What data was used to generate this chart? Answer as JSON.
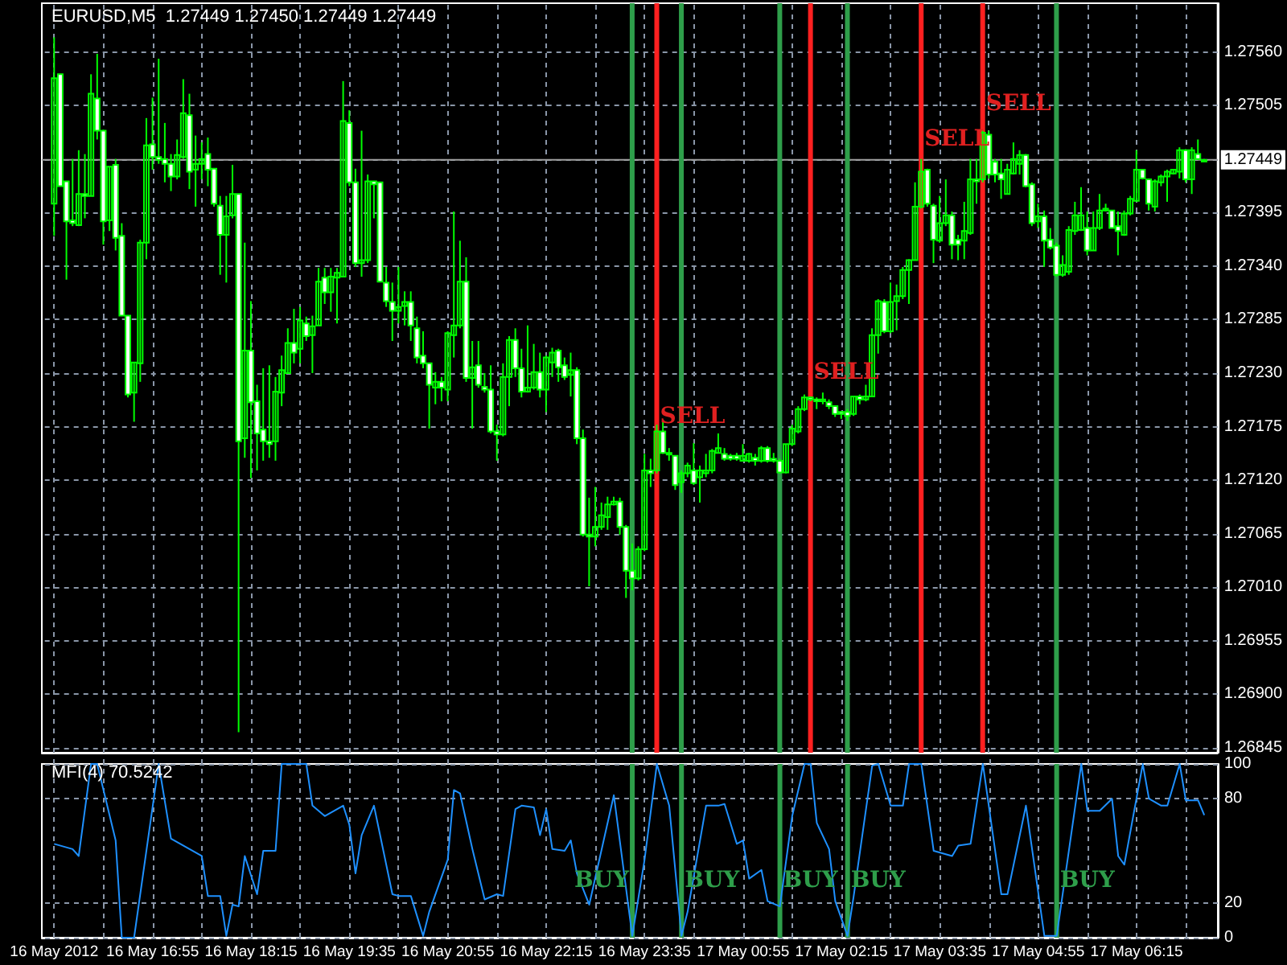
{
  "chart_data": [
    {
      "type": "candlestick",
      "title": "EURUSD,M5  1.27449 1.27450 1.27449 1.27449",
      "color": "#00ff00",
      "grid": true,
      "tick_labels": "y",
      "xlim": [
        "2012-05-16T15:25",
        "2012-05-17T07:21"
      ],
      "ylim": [
        1.2684,
        1.2761
      ],
      "xticks": [
        "2012-05-16T15:35",
        "2012-05-16T16:15",
        "2012-05-16T16:55",
        "2012-05-16T17:35",
        "2012-05-16T18:15",
        "2012-05-16T18:55",
        "2012-05-16T19:35",
        "2012-05-16T20:15",
        "2012-05-16T20:55",
        "2012-05-16T21:35",
        "2012-05-16T22:15",
        "2012-05-16T22:55",
        "2012-05-16T23:35",
        "2012-05-17T00:15",
        "2012-05-17T00:55",
        "2012-05-17T01:35",
        "2012-05-17T02:15",
        "2012-05-17T02:55",
        "2012-05-17T03:35",
        "2012-05-17T04:15",
        "2012-05-17T04:55",
        "2012-05-17T05:35",
        "2012-05-17T06:15",
        "2012-05-17T06:55"
      ],
      "yticks": [
        {
          "value": 1.2756,
          "label": "1.27560"
        },
        1.27505,
        {
          "value": 1.2745,
          "label": null
        },
        1.27395,
        {
          "value": 1.2734,
          "label": "1.27340"
        },
        1.27285,
        {
          "value": 1.2723,
          "label": "1.27230"
        },
        1.27175,
        {
          "value": 1.2712,
          "label": "1.27120"
        },
        1.27065,
        {
          "value": 1.2701,
          "label": "1.27010"
        },
        1.26955,
        {
          "value": 1.269,
          "label": "1.26900"
        },
        1.26845
      ],
      "ref_lines": [
        {
          "axis": "y",
          "value": 1.27449,
          "label": "1.27449",
          "color": "#a0a0a0"
        },
        {
          "axis": "x",
          "value": "2012-05-16T23:45",
          "color": "#ff2020"
        },
        {
          "axis": "x",
          "value": "2012-05-17T01:50",
          "color": "#ff2020"
        },
        {
          "axis": "x",
          "value": "2012-05-17T03:20",
          "color": "#ff2020"
        },
        {
          "axis": "x",
          "value": "2012-05-17T04:10",
          "color": "#ff2020"
        },
        {
          "axis": "x",
          "value": "2012-05-16T23:25",
          "color": "#2e9e4a"
        },
        {
          "axis": "x",
          "value": "2012-05-17T00:05",
          "color": "#2e9e4a"
        },
        {
          "axis": "x",
          "value": "2012-05-17T01:25",
          "color": "#2e9e4a"
        },
        {
          "axis": "x",
          "value": "2012-05-17T02:20",
          "color": "#2e9e4a"
        },
        {
          "axis": "x",
          "value": "2012-05-17T05:10",
          "color": "#2e9e4a"
        }
      ],
      "annotations": [
        {
          "text": "SELL",
          "x": "2012-05-16T23:45",
          "y": 1.27185
        },
        {
          "text": "SELL",
          "x": "2012-05-17T01:50",
          "y": 1.27231
        },
        {
          "text": "SELL",
          "x": "2012-05-17T03:20",
          "y": 1.2747
        },
        {
          "text": "SELL",
          "x": "2012-05-17T04:10",
          "y": 1.27507
        }
      ],
      "x": [
        "2012-05-16T15:35",
        "2012-05-16T15:40",
        "2012-05-16T15:45",
        "2012-05-16T15:50",
        "2012-05-16T15:55",
        "2012-05-16T16:00",
        "2012-05-16T16:05",
        "2012-05-16T16:10",
        "2012-05-16T16:15",
        "2012-05-16T16:20",
        "2012-05-16T16:25",
        "2012-05-16T16:30",
        "2012-05-16T16:35",
        "2012-05-16T16:40",
        "2012-05-16T16:45",
        "2012-05-16T16:50",
        "2012-05-16T16:55",
        "2012-05-16T17:00",
        "2012-05-16T17:05",
        "2012-05-16T17:10",
        "2012-05-16T17:15",
        "2012-05-16T17:20",
        "2012-05-16T17:25",
        "2012-05-16T17:30",
        "2012-05-16T17:35",
        "2012-05-16T17:40",
        "2012-05-16T17:45",
        "2012-05-16T17:50",
        "2012-05-16T17:55",
        "2012-05-16T18:00",
        "2012-05-16T18:05",
        "2012-05-16T18:10",
        "2012-05-16T18:15",
        "2012-05-16T18:20",
        "2012-05-16T18:25",
        "2012-05-16T18:30",
        "2012-05-16T18:35",
        "2012-05-16T18:40",
        "2012-05-16T18:45",
        "2012-05-16T18:50",
        "2012-05-16T18:55",
        "2012-05-16T19:00",
        "2012-05-16T19:05",
        "2012-05-16T19:10",
        "2012-05-16T19:15",
        "2012-05-16T19:20",
        "2012-05-16T19:25",
        "2012-05-16T19:30",
        "2012-05-16T19:35",
        "2012-05-16T19:40",
        "2012-05-16T19:45",
        "2012-05-16T19:50",
        "2012-05-16T19:55",
        "2012-05-16T20:00",
        "2012-05-16T20:05",
        "2012-05-16T20:10",
        "2012-05-16T20:15",
        "2012-05-16T20:20",
        "2012-05-16T20:25",
        "2012-05-16T20:30",
        "2012-05-16T20:35",
        "2012-05-16T20:40",
        "2012-05-16T20:45",
        "2012-05-16T20:50",
        "2012-05-16T20:55",
        "2012-05-16T21:00",
        "2012-05-16T21:05",
        "2012-05-16T21:10",
        "2012-05-16T21:15",
        "2012-05-16T21:20",
        "2012-05-16T21:25",
        "2012-05-16T21:30",
        "2012-05-16T21:35",
        "2012-05-16T21:40",
        "2012-05-16T21:45",
        "2012-05-16T21:50",
        "2012-05-16T21:55",
        "2012-05-16T22:00",
        "2012-05-16T22:05",
        "2012-05-16T22:10",
        "2012-05-16T22:15",
        "2012-05-16T22:20",
        "2012-05-16T22:25",
        "2012-05-16T22:30",
        "2012-05-16T22:35",
        "2012-05-16T22:40",
        "2012-05-16T22:45",
        "2012-05-16T22:50",
        "2012-05-16T22:55",
        "2012-05-16T23:00",
        "2012-05-16T23:05",
        "2012-05-16T23:10",
        "2012-05-16T23:15",
        "2012-05-16T23:20",
        "2012-05-16T23:25",
        "2012-05-16T23:30",
        "2012-05-16T23:35",
        "2012-05-16T23:40",
        "2012-05-16T23:45",
        "2012-05-16T23:50",
        "2012-05-16T23:55",
        "2012-05-17T00:00",
        "2012-05-17T00:05",
        "2012-05-17T00:10",
        "2012-05-17T00:15",
        "2012-05-17T00:20",
        "2012-05-17T00:25",
        "2012-05-17T00:30",
        "2012-05-17T00:35",
        "2012-05-17T00:40",
        "2012-05-17T00:45",
        "2012-05-17T00:50",
        "2012-05-17T00:55",
        "2012-05-17T01:00",
        "2012-05-17T01:05",
        "2012-05-17T01:10",
        "2012-05-17T01:15",
        "2012-05-17T01:20",
        "2012-05-17T01:25",
        "2012-05-17T01:30",
        "2012-05-17T01:35",
        "2012-05-17T01:40",
        "2012-05-17T01:45",
        "2012-05-17T01:50",
        "2012-05-17T01:55",
        "2012-05-17T02:00",
        "2012-05-17T02:05",
        "2012-05-17T02:10",
        "2012-05-17T02:15",
        "2012-05-17T02:20",
        "2012-05-17T02:25",
        "2012-05-17T02:30",
        "2012-05-17T02:35",
        "2012-05-17T02:40",
        "2012-05-17T02:45",
        "2012-05-17T02:50",
        "2012-05-17T02:55",
        "2012-05-17T03:00",
        "2012-05-17T03:05",
        "2012-05-17T03:10",
        "2012-05-17T03:15",
        "2012-05-17T03:20",
        "2012-05-17T03:25",
        "2012-05-17T03:30",
        "2012-05-17T03:35",
        "2012-05-17T03:40",
        "2012-05-17T03:45",
        "2012-05-17T03:50",
        "2012-05-17T03:55",
        "2012-05-17T04:00",
        "2012-05-17T04:05",
        "2012-05-17T04:10",
        "2012-05-17T04:15",
        "2012-05-17T04:20",
        "2012-05-17T04:25",
        "2012-05-17T04:30",
        "2012-05-17T04:35",
        "2012-05-17T04:40",
        "2012-05-17T04:45",
        "2012-05-17T04:50",
        "2012-05-17T04:55",
        "2012-05-17T05:00",
        "2012-05-17T05:05",
        "2012-05-17T05:10",
        "2012-05-17T05:15",
        "2012-05-17T05:20",
        "2012-05-17T05:25",
        "2012-05-17T05:30",
        "2012-05-17T05:35",
        "2012-05-17T05:40",
        "2012-05-17T05:45",
        "2012-05-17T05:50",
        "2012-05-17T05:55",
        "2012-05-17T06:00",
        "2012-05-17T06:05",
        "2012-05-17T06:10",
        "2012-05-17T06:15",
        "2012-05-17T06:20",
        "2012-05-17T06:25",
        "2012-05-17T06:30",
        "2012-05-17T06:35",
        "2012-05-17T06:40",
        "2012-05-17T06:45",
        "2012-05-17T06:50",
        "2012-05-17T06:55",
        "2012-05-17T07:00",
        "2012-05-17T07:05",
        "2012-05-17T07:10"
      ],
      "ohlc": [
        [
          1.27404,
          1.27575,
          1.27371,
          1.27533
        ],
        [
          1.27537,
          1.27537,
          1.27422,
          1.27422
        ],
        [
          1.27427,
          1.27427,
          1.27326,
          1.27386
        ],
        [
          1.27387,
          1.2745,
          1.27381,
          1.27384
        ],
        [
          1.27382,
          1.27459,
          1.27381,
          1.27414
        ],
        [
          1.27414,
          1.27455,
          1.27389,
          1.27412
        ],
        [
          1.27412,
          1.27537,
          1.27412,
          1.27517
        ],
        [
          1.27512,
          1.27558,
          1.2747,
          1.27479
        ],
        [
          1.27479,
          1.2748,
          1.27362,
          1.27386
        ],
        [
          1.27387,
          1.27442,
          1.27376,
          1.27442
        ],
        [
          1.27444,
          1.2745,
          1.27356,
          1.27369
        ],
        [
          1.27371,
          1.27384,
          1.27289,
          1.27289
        ],
        [
          1.27289,
          1.27289,
          1.27205,
          1.27208
        ],
        [
          1.2721,
          1.27241,
          1.2718,
          1.27241
        ],
        [
          1.2724,
          1.27367,
          1.27221,
          1.27364
        ],
        [
          1.27364,
          1.27492,
          1.27347,
          1.27464
        ],
        [
          1.27465,
          1.27513,
          1.27439,
          1.27452
        ],
        [
          1.27452,
          1.27553,
          1.27445,
          1.27449
        ],
        [
          1.2745,
          1.27487,
          1.27426,
          1.27445
        ],
        [
          1.27445,
          1.27455,
          1.27417,
          1.27432
        ],
        [
          1.27432,
          1.2747,
          1.27429,
          1.27454
        ],
        [
          1.27452,
          1.27532,
          1.2745,
          1.27497
        ],
        [
          1.27495,
          1.27517,
          1.27419,
          1.27437
        ],
        [
          1.27439,
          1.27474,
          1.27401,
          1.27445
        ],
        [
          1.27445,
          1.27467,
          1.27429,
          1.2745
        ],
        [
          1.27455,
          1.27472,
          1.27422,
          1.27439
        ],
        [
          1.2744,
          1.2744,
          1.27401,
          1.27404
        ],
        [
          1.27402,
          1.27412,
          1.27331,
          1.27372
        ],
        [
          1.27372,
          1.27412,
          1.27323,
          1.27391
        ],
        [
          1.27392,
          1.27444,
          1.27389,
          1.27414
        ],
        [
          1.27414,
          1.27414,
          1.26861,
          1.2716
        ],
        [
          1.27163,
          1.27364,
          1.27143,
          1.27253
        ],
        [
          1.27253,
          1.27304,
          1.27122,
          1.272
        ],
        [
          1.27201,
          1.27218,
          1.2713,
          1.27168
        ],
        [
          1.27172,
          1.27235,
          1.2714,
          1.2716
        ],
        [
          1.2716,
          1.27238,
          1.27143,
          1.27157
        ],
        [
          1.2716,
          1.27226,
          1.2714,
          1.27211
        ],
        [
          1.2721,
          1.27248,
          1.27196,
          1.27233
        ],
        [
          1.2723,
          1.27276,
          1.2723,
          1.27261
        ],
        [
          1.27261,
          1.27296,
          1.2724,
          1.27251
        ],
        [
          1.27255,
          1.27298,
          1.2724,
          1.27284
        ],
        [
          1.27281,
          1.27288,
          1.27263,
          1.27268
        ],
        [
          1.27269,
          1.27289,
          1.2723,
          1.27278
        ],
        [
          1.27279,
          1.27338,
          1.27279,
          1.27324
        ],
        [
          1.27328,
          1.27338,
          1.27301,
          1.27313
        ],
        [
          1.27313,
          1.27338,
          1.27293,
          1.27329
        ],
        [
          1.27328,
          1.27338,
          1.27281,
          1.27333
        ],
        [
          1.27329,
          1.2753,
          1.27329,
          1.27489
        ],
        [
          1.27487,
          1.275,
          1.27422,
          1.27426
        ],
        [
          1.27426,
          1.2744,
          1.27339,
          1.27343
        ],
        [
          1.27343,
          1.27479,
          1.27329,
          1.27346
        ],
        [
          1.27346,
          1.27434,
          1.27343,
          1.27427
        ],
        [
          1.27427,
          1.27427,
          1.27389,
          1.27424
        ],
        [
          1.27426,
          1.27426,
          1.27324,
          1.27324
        ],
        [
          1.27323,
          1.27339,
          1.27298,
          1.27304
        ],
        [
          1.27303,
          1.27323,
          1.27263,
          1.27294
        ],
        [
          1.27294,
          1.27339,
          1.27281,
          1.27298
        ],
        [
          1.27299,
          1.27314,
          1.27279,
          1.27303
        ],
        [
          1.27303,
          1.27314,
          1.27263,
          1.27279
        ],
        [
          1.27276,
          1.27288,
          1.2724,
          1.27246
        ],
        [
          1.27248,
          1.27273,
          1.27235,
          1.2724
        ],
        [
          1.2724,
          1.2724,
          1.27173,
          1.27218
        ],
        [
          1.27215,
          1.27231,
          1.27198,
          1.27221
        ],
        [
          1.27221,
          1.27226,
          1.27201,
          1.27215
        ],
        [
          1.27213,
          1.27273,
          1.27201,
          1.27271
        ],
        [
          1.27269,
          1.27396,
          1.27246,
          1.27279
        ],
        [
          1.27279,
          1.27366,
          1.27276,
          1.27324
        ],
        [
          1.27324,
          1.27349,
          1.27221,
          1.27225
        ],
        [
          1.27225,
          1.27263,
          1.27173,
          1.27236
        ],
        [
          1.27238,
          1.27263,
          1.27215,
          1.27218
        ],
        [
          1.27216,
          1.2723,
          1.2721,
          1.27213
        ],
        [
          1.27213,
          1.27238,
          1.27168,
          1.2717
        ],
        [
          1.2717,
          1.27177,
          1.2714,
          1.27167
        ],
        [
          1.27167,
          1.2724,
          1.27165,
          1.27226
        ],
        [
          1.27226,
          1.27268,
          1.27196,
          1.27264
        ],
        [
          1.27264,
          1.27276,
          1.27226,
          1.27235
        ],
        [
          1.27235,
          1.27255,
          1.27205,
          1.27211
        ],
        [
          1.27211,
          1.27279,
          1.2721,
          1.27215
        ],
        [
          1.27215,
          1.2726,
          1.27213,
          1.27231
        ],
        [
          1.27231,
          1.27251,
          1.27205,
          1.27213
        ],
        [
          1.27213,
          1.27248,
          1.2719,
          1.27246
        ],
        [
          1.27241,
          1.27256,
          1.27226,
          1.27251
        ],
        [
          1.27253,
          1.27255,
          1.27221,
          1.27236
        ],
        [
          1.27238,
          1.27246,
          1.27223,
          1.27226
        ],
        [
          1.27228,
          1.27251,
          1.27206,
          1.27233
        ],
        [
          1.27233,
          1.27236,
          1.27157,
          1.27163
        ],
        [
          1.27163,
          1.27172,
          1.27062,
          1.27064
        ],
        [
          1.27064,
          1.27102,
          1.27011,
          1.27062
        ],
        [
          1.27062,
          1.27113,
          1.27052,
          1.27072
        ],
        [
          1.27072,
          1.27097,
          1.27069,
          1.27084
        ],
        [
          1.27082,
          1.27103,
          1.27069,
          1.27095
        ],
        [
          1.27095,
          1.27103,
          1.27094,
          1.27098
        ],
        [
          1.27098,
          1.27102,
          1.27064,
          1.27072
        ],
        [
          1.27072,
          1.27074,
          1.26999,
          1.27027
        ],
        [
          1.27027,
          1.27055,
          1.27007,
          1.27019
        ],
        [
          1.27019,
          1.27052,
          1.27017,
          1.27049
        ],
        [
          1.27049,
          1.27147,
          1.27047,
          1.2713
        ],
        [
          1.2713,
          1.27142,
          1.27113,
          1.27127
        ],
        [
          1.2713,
          1.27177,
          1.27127,
          1.2717
        ],
        [
          1.2717,
          1.2718,
          1.27147,
          1.27148
        ],
        [
          1.27148,
          1.27153,
          1.2714,
          1.27147
        ],
        [
          1.27145,
          1.27145,
          1.2711,
          1.27115
        ],
        [
          1.27118,
          1.2713,
          1.27107,
          1.27127
        ],
        [
          1.27127,
          1.27138,
          1.27123,
          1.27135
        ],
        [
          1.2713,
          1.27158,
          1.27115,
          1.27117
        ],
        [
          1.27123,
          1.27135,
          1.27097,
          1.2713
        ],
        [
          1.27127,
          1.27147,
          1.27123,
          1.2713
        ],
        [
          1.2713,
          1.27152,
          1.27127,
          1.2715
        ],
        [
          1.27148,
          1.27168,
          1.27148,
          1.27153
        ],
        [
          1.27147,
          1.27153,
          1.2714,
          1.27142
        ],
        [
          1.27145,
          1.27147,
          1.2714,
          1.27142
        ],
        [
          1.27145,
          1.27148,
          1.2714,
          1.27142
        ],
        [
          1.2714,
          1.27157,
          1.2714,
          1.27145
        ],
        [
          1.2714,
          1.27148,
          1.27138,
          1.27147
        ],
        [
          1.27143,
          1.27147,
          1.27135,
          1.2714
        ],
        [
          1.2714,
          1.27155,
          1.27138,
          1.27153
        ],
        [
          1.27153,
          1.27155,
          1.27138,
          1.2714
        ],
        [
          1.27142,
          1.27148,
          1.27138,
          1.2714
        ],
        [
          1.2714,
          1.27142,
          1.27127,
          1.27128
        ],
        [
          1.27128,
          1.27157,
          1.27127,
          1.27157
        ],
        [
          1.27157,
          1.27177,
          1.27155,
          1.27173
        ],
        [
          1.2717,
          1.27196,
          1.27168,
          1.27193
        ],
        [
          1.27193,
          1.27208,
          1.27191,
          1.27205
        ],
        [
          1.27205,
          1.27206,
          1.27201,
          1.27203
        ],
        [
          1.27203,
          1.27205,
          1.27193,
          1.27201
        ],
        [
          1.27201,
          1.2721,
          1.27198,
          1.27203
        ],
        [
          1.272,
          1.27203,
          1.27193,
          1.27196
        ],
        [
          1.27196,
          1.27196,
          1.27185,
          1.27188
        ],
        [
          1.2719,
          1.27191,
          1.27183,
          1.27188
        ],
        [
          1.2719,
          1.27193,
          1.27181,
          1.27186
        ],
        [
          1.27188,
          1.27206,
          1.27186,
          1.27206
        ],
        [
          1.27206,
          1.27208,
          1.27198,
          1.27203
        ],
        [
          1.27203,
          1.27218,
          1.27201,
          1.27206
        ],
        [
          1.27206,
          1.27276,
          1.27206,
          1.27269
        ],
        [
          1.27269,
          1.27306,
          1.2725,
          1.27304
        ],
        [
          1.27303,
          1.27306,
          1.27271,
          1.27273
        ],
        [
          1.27273,
          1.27323,
          1.27271,
          1.27303
        ],
        [
          1.27304,
          1.27321,
          1.27274,
          1.27309
        ],
        [
          1.27309,
          1.27339,
          1.27306,
          1.27336
        ],
        [
          1.27336,
          1.27347,
          1.27301,
          1.27346
        ],
        [
          1.27346,
          1.27426,
          1.27346,
          1.27401
        ],
        [
          1.27401,
          1.2745,
          1.27399,
          1.27437
        ],
        [
          1.27439,
          1.2744,
          1.27401,
          1.27404
        ],
        [
          1.27402,
          1.27404,
          1.27343,
          1.27367
        ],
        [
          1.27366,
          1.27412,
          1.27364,
          1.27384
        ],
        [
          1.27384,
          1.27429,
          1.27381,
          1.27392
        ],
        [
          1.27392,
          1.27396,
          1.27347,
          1.27362
        ],
        [
          1.27367,
          1.27372,
          1.27346,
          1.27362
        ],
        [
          1.27366,
          1.27406,
          1.27347,
          1.27376
        ],
        [
          1.27374,
          1.2745,
          1.27372,
          1.27429
        ],
        [
          1.27429,
          1.2745,
          1.27404,
          1.27427
        ],
        [
          1.27429,
          1.27479,
          1.27426,
          1.27477
        ],
        [
          1.27475,
          1.27479,
          1.2743,
          1.27434
        ],
        [
          1.27447,
          1.2745,
          1.27426,
          1.27434
        ],
        [
          1.27435,
          1.2745,
          1.27409,
          1.27429
        ],
        [
          1.27414,
          1.27445,
          1.27414,
          1.27439
        ],
        [
          1.27435,
          1.27467,
          1.27434,
          1.2745
        ],
        [
          1.27445,
          1.27459,
          1.27434,
          1.27454
        ],
        [
          1.27454,
          1.27455,
          1.27421,
          1.27422
        ],
        [
          1.27424,
          1.27426,
          1.27381,
          1.27384
        ],
        [
          1.27386,
          1.27404,
          1.27379,
          1.27391
        ],
        [
          1.27391,
          1.27397,
          1.27339,
          1.27366
        ],
        [
          1.27367,
          1.27379,
          1.27357,
          1.27359
        ],
        [
          1.27361,
          1.27364,
          1.27329,
          1.27331
        ],
        [
          1.27331,
          1.27351,
          1.27329,
          1.27341
        ],
        [
          1.27334,
          1.27381,
          1.27331,
          1.27377
        ],
        [
          1.27376,
          1.27406,
          1.27372,
          1.27392
        ],
        [
          1.27377,
          1.27421,
          1.27376,
          1.27392
        ],
        [
          1.27379,
          1.27396,
          1.27351,
          1.27356
        ],
        [
          1.27356,
          1.27396,
          1.27356,
          1.27379
        ],
        [
          1.27379,
          1.27414,
          1.27377,
          1.27397
        ],
        [
          1.27397,
          1.27404,
          1.27396,
          1.27399
        ],
        [
          1.27397,
          1.27397,
          1.27379,
          1.27379
        ],
        [
          1.27381,
          1.27396,
          1.27351,
          1.27376
        ],
        [
          1.27372,
          1.27397,
          1.27371,
          1.27394
        ],
        [
          1.27394,
          1.27412,
          1.27392,
          1.27409
        ],
        [
          1.27407,
          1.27459,
          1.27406,
          1.27439
        ],
        [
          1.27439,
          1.27439,
          1.27429,
          1.2743
        ],
        [
          1.27429,
          1.2743,
          1.27397,
          1.27404
        ],
        [
          1.27401,
          1.27429,
          1.27396,
          1.27427
        ],
        [
          1.27426,
          1.27434,
          1.27422,
          1.27432
        ],
        [
          1.27432,
          1.27439,
          1.27406,
          1.27437
        ],
        [
          1.27435,
          1.27439,
          1.27434,
          1.27439
        ],
        [
          1.27437,
          1.27462,
          1.2743,
          1.27459
        ],
        [
          1.27459,
          1.2746,
          1.27426,
          1.27429
        ],
        [
          1.27429,
          1.27462,
          1.27414,
          1.27459
        ],
        [
          1.27455,
          1.2747,
          1.27449,
          1.2745
        ],
        [
          1.27449,
          1.2745,
          1.27449,
          1.27449
        ]
      ]
    },
    {
      "type": "line",
      "title": "MFI(4) 70.5242",
      "grid": true,
      "marker": "none",
      "line_style": "solid",
      "xlim": [
        "2012-05-16T15:25",
        "2012-05-17T07:21"
      ],
      "ylim": [
        0,
        100
      ],
      "xticks": [
        {
          "value": "2012-05-16T15:35",
          "label": "16 May 2012"
        },
        {
          "value": "2012-05-16T16:15",
          "label": null
        },
        {
          "value": "2012-05-16T16:55",
          "label": "16 May 16:55"
        },
        {
          "value": "2012-05-16T17:35",
          "label": null
        },
        {
          "value": "2012-05-16T18:15",
          "label": "16 May 18:15"
        },
        {
          "value": "2012-05-16T18:55",
          "label": null
        },
        {
          "value": "2012-05-16T19:35",
          "label": "16 May 19:35"
        },
        {
          "value": "2012-05-16T20:15",
          "label": null
        },
        {
          "value": "2012-05-16T20:55",
          "label": "16 May 20:55"
        },
        {
          "value": "2012-05-16T21:35",
          "label": null
        },
        {
          "value": "2012-05-16T22:15",
          "label": "16 May 22:15"
        },
        {
          "value": "2012-05-16T22:55",
          "label": null
        },
        {
          "value": "2012-05-16T23:35",
          "label": "16 May 23:35"
        },
        {
          "value": "2012-05-17T00:15",
          "label": null
        },
        {
          "value": "2012-05-17T00:55",
          "label": "17 May 00:55"
        },
        {
          "value": "2012-05-17T01:35",
          "label": null
        },
        {
          "value": "2012-05-17T02:15",
          "label": "17 May 02:15"
        },
        {
          "value": "2012-05-17T02:55",
          "label": null
        },
        {
          "value": "2012-05-17T03:35",
          "label": "17 May 03:35"
        },
        {
          "value": "2012-05-17T04:15",
          "label": null
        },
        {
          "value": "2012-05-17T04:55",
          "label": "17 May 04:55"
        },
        {
          "value": "2012-05-17T05:35",
          "label": null
        },
        {
          "value": "2012-05-17T06:15",
          "label": "17 May 06:15"
        },
        {
          "value": "2012-05-17T06:55",
          "label": null
        }
      ],
      "yticks": [
        100,
        80,
        20,
        0
      ],
      "ref_lines": [
        {
          "axis": "x",
          "value": "2012-05-16T23:25",
          "color": "#2e9e4a"
        },
        {
          "axis": "x",
          "value": "2012-05-17T00:05",
          "color": "#2e9e4a"
        },
        {
          "axis": "x",
          "value": "2012-05-17T01:25",
          "color": "#2e9e4a"
        },
        {
          "axis": "x",
          "value": "2012-05-17T02:20",
          "color": "#2e9e4a"
        },
        {
          "axis": "x",
          "value": "2012-05-17T05:10",
          "color": "#2e9e4a"
        }
      ],
      "annotations": [
        {
          "text": "BUY",
          "x": "2012-05-16T23:25",
          "y": 33
        },
        {
          "text": "BUY",
          "x": "2012-05-17T00:05",
          "y": 33
        },
        {
          "text": "BUY",
          "x": "2012-05-17T01:25",
          "y": 33
        },
        {
          "text": "BUY",
          "x": "2012-05-17T02:20",
          "y": 33
        },
        {
          "text": "BUY",
          "x": "2012-05-17T05:10",
          "y": 33
        }
      ],
      "series": [
        {
          "color": "#1e90ff",
          "x": [
            "2012-05-16T15:35",
            "2012-05-16T15:50",
            "2012-05-16T15:55",
            "2012-05-16T16:05",
            "2012-05-16T16:10",
            "2012-05-16T16:25",
            "2012-05-16T16:30",
            "2012-05-16T16:40",
            "2012-05-16T17:00",
            "2012-05-16T17:10",
            "2012-05-16T17:35",
            "2012-05-16T17:40",
            "2012-05-16T17:50",
            "2012-05-16T17:55",
            "2012-05-16T18:00",
            "2012-05-16T18:05",
            "2012-05-16T18:10",
            "2012-05-16T18:20",
            "2012-05-16T18:25",
            "2012-05-16T18:35",
            "2012-05-16T18:40",
            "2012-05-16T19:00",
            "2012-05-16T19:05",
            "2012-05-16T19:15",
            "2012-05-16T19:30",
            "2012-05-16T19:35",
            "2012-05-16T19:40",
            "2012-05-16T19:45",
            "2012-05-16T19:55",
            "2012-05-16T20:00",
            "2012-05-16T20:10",
            "2012-05-16T20:15",
            "2012-05-16T20:25",
            "2012-05-16T20:35",
            "2012-05-16T20:40",
            "2012-05-16T20:55",
            "2012-05-16T21:00",
            "2012-05-16T21:05",
            "2012-05-16T21:15",
            "2012-05-16T21:25",
            "2012-05-16T21:35",
            "2012-05-16T21:40",
            "2012-05-16T21:50",
            "2012-05-16T21:55",
            "2012-05-16T22:05",
            "2012-05-16T22:10",
            "2012-05-16T22:15",
            "2012-05-16T22:20",
            "2012-05-16T22:30",
            "2012-05-16T22:35",
            "2012-05-16T22:40",
            "2012-05-16T22:50",
            "2012-05-16T23:10",
            "2012-05-16T23:25",
            "2012-05-16T23:35",
            "2012-05-16T23:45",
            "2012-05-16T23:55",
            "2012-05-17T00:05",
            "2012-05-17T00:10",
            "2012-05-17T00:25",
            "2012-05-17T00:35",
            "2012-05-17T00:40",
            "2012-05-17T00:50",
            "2012-05-17T00:55",
            "2012-05-17T01:00",
            "2012-05-17T01:10",
            "2012-05-17T01:15",
            "2012-05-17T01:25",
            "2012-05-17T01:35",
            "2012-05-17T01:45",
            "2012-05-17T01:50",
            "2012-05-17T01:55",
            "2012-05-17T02:05",
            "2012-05-17T02:10",
            "2012-05-17T02:20",
            "2012-05-17T02:25",
            "2012-05-17T02:40",
            "2012-05-17T02:45",
            "2012-05-17T02:55",
            "2012-05-17T03:05",
            "2012-05-17T03:10",
            "2012-05-17T03:20",
            "2012-05-17T03:30",
            "2012-05-17T03:45",
            "2012-05-17T03:50",
            "2012-05-17T04:00",
            "2012-05-17T04:10",
            "2012-05-17T04:25",
            "2012-05-17T04:30",
            "2012-05-17T04:45",
            "2012-05-17T05:00",
            "2012-05-17T05:10",
            "2012-05-17T05:30",
            "2012-05-17T05:35",
            "2012-05-17T05:45",
            "2012-05-17T05:55",
            "2012-05-17T06:00",
            "2012-05-17T06:05",
            "2012-05-17T06:20",
            "2012-05-17T06:25",
            "2012-05-17T06:35",
            "2012-05-17T06:40",
            "2012-05-17T06:50",
            "2012-05-17T06:55",
            "2012-05-17T07:05",
            "2012-05-17T07:10"
          ],
          "values": [
            54,
            51,
            47,
            100,
            100,
            56,
            0,
            0,
            100,
            57,
            47,
            24,
            24,
            1,
            19,
            18,
            47,
            25,
            50,
            50,
            100,
            100,
            76,
            70,
            76,
            65,
            37,
            59,
            76,
            59,
            25,
            24,
            24,
            1,
            15,
            45,
            85,
            83,
            51,
            22,
            25,
            24,
            74,
            76,
            75,
            59,
            74,
            51,
            50,
            56,
            37,
            19,
            82,
            1,
            45,
            100,
            76,
            1,
            15,
            76,
            76,
            77,
            54,
            56,
            34,
            39,
            21,
            18,
            70,
            100,
            100,
            66,
            51,
            21,
            1,
            24,
            99,
            100,
            76,
            76,
            100,
            100,
            50,
            47,
            53,
            54,
            100,
            25,
            25,
            76,
            1,
            1,
            100,
            73,
            73,
            80,
            47,
            42,
            100,
            80,
            76,
            76,
            100,
            79,
            79,
            70.5242
          ]
        }
      ]
    }
  ]
}
